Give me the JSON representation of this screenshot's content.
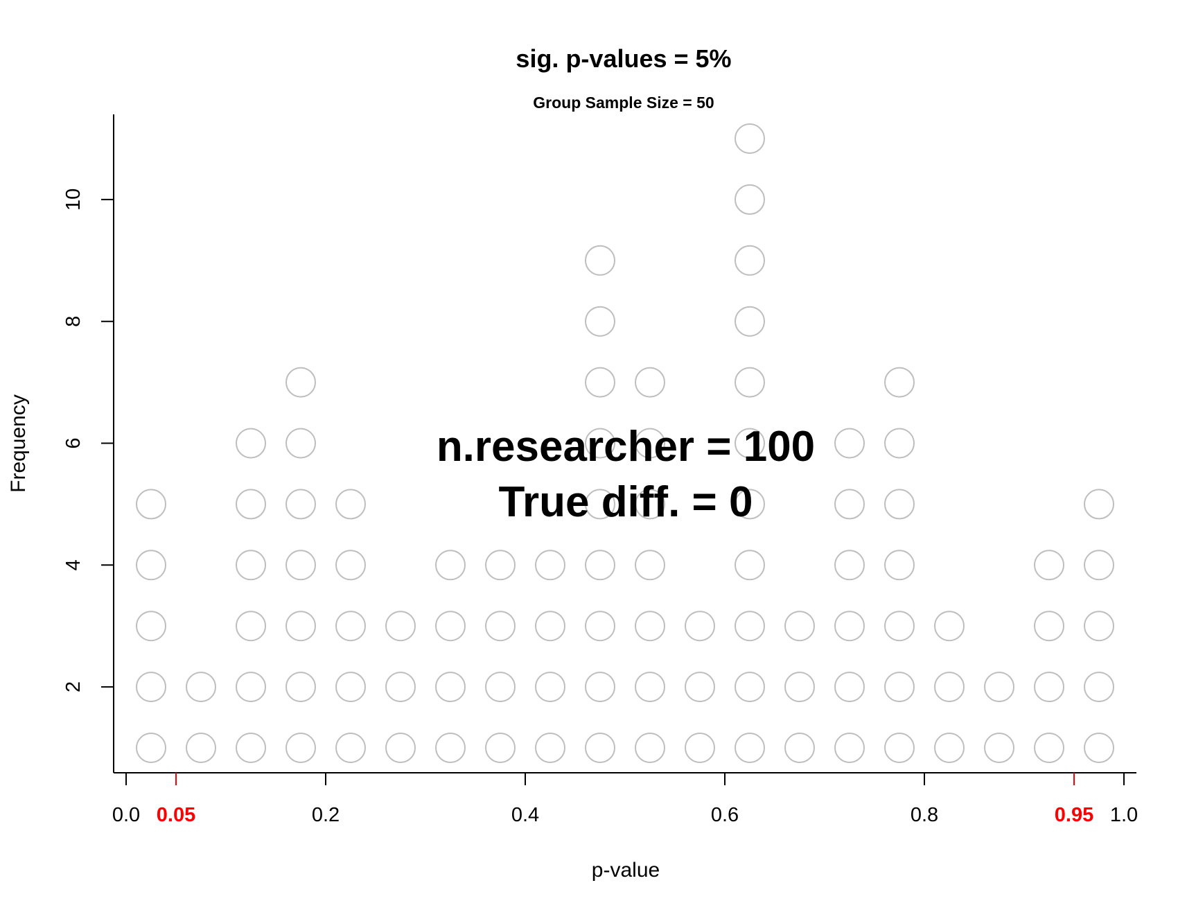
{
  "chart_data": {
    "type": "scatter",
    "style": "dot-plot",
    "title": "sig. p-values = 5%",
    "subtitle": "Group Sample Size = 50",
    "xlabel": "p-value",
    "ylabel": "Frequency",
    "xlim": [
      0,
      1
    ],
    "ylim": [
      1,
      11
    ],
    "x_ticks": [
      "0.0",
      "0.2",
      "0.4",
      "0.6",
      "0.8",
      "1.0"
    ],
    "y_ticks": [
      "2",
      "4",
      "6",
      "8",
      "10"
    ],
    "highlight_ticks": [
      "0.05",
      "0.95"
    ],
    "highlight_color": "#ff0000",
    "marker_color": "#bebebe",
    "grid": false,
    "annotations": [
      "n.researcher = 100",
      "True diff. = 0"
    ],
    "bins": [
      {
        "x": 0.025,
        "count": 5
      },
      {
        "x": 0.075,
        "count": 2
      },
      {
        "x": 0.125,
        "count": 6
      },
      {
        "x": 0.175,
        "count": 7
      },
      {
        "x": 0.225,
        "count": 5
      },
      {
        "x": 0.275,
        "count": 3
      },
      {
        "x": 0.325,
        "count": 4
      },
      {
        "x": 0.375,
        "count": 4
      },
      {
        "x": 0.425,
        "count": 4
      },
      {
        "x": 0.475,
        "count": 9
      },
      {
        "x": 0.525,
        "count": 7
      },
      {
        "x": 0.575,
        "count": 3
      },
      {
        "x": 0.625,
        "count": 11
      },
      {
        "x": 0.675,
        "count": 3
      },
      {
        "x": 0.725,
        "count": 6
      },
      {
        "x": 0.775,
        "count": 7
      },
      {
        "x": 0.825,
        "count": 3
      },
      {
        "x": 0.875,
        "count": 2
      },
      {
        "x": 0.925,
        "count": 4
      },
      {
        "x": 0.975,
        "count": 5
      }
    ]
  }
}
